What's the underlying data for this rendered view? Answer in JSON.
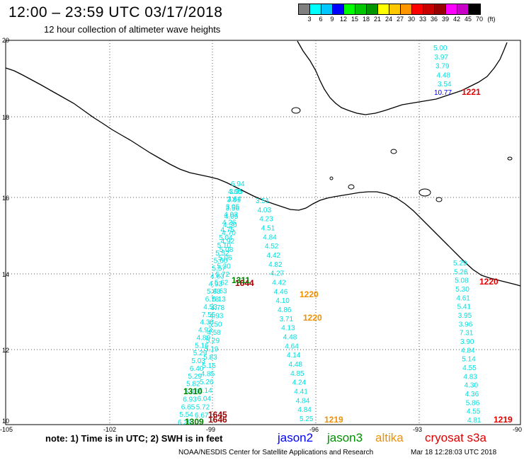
{
  "header": {
    "title": "12:00 – 23:59 UTC 03/17/2018",
    "subtitle": "12 hour collection of altimeter wave heights"
  },
  "scale": {
    "swatches": [
      "#7f7f7f",
      "#00ffff",
      "#00c8ff",
      "#0000ff",
      "#00ff00",
      "#00c800",
      "#009600",
      "#ffff00",
      "#ffc800",
      "#ff9600",
      "#ff0000",
      "#c80000",
      "#960000",
      "#ff00ff",
      "#c800c8",
      "#000000"
    ],
    "labels": [
      "3",
      "6",
      "9",
      "12",
      "15",
      "18",
      "21",
      "24",
      "27",
      "30",
      "33",
      "36",
      "39",
      "42",
      "45",
      "70"
    ],
    "unit": "(ft)"
  },
  "axes": {
    "lat_labels": [
      "20",
      "18",
      "16",
      "14",
      "12",
      "10"
    ],
    "lon_labels": [
      "-105",
      "-102",
      "-99",
      "-96",
      "-93",
      "-90"
    ]
  },
  "tracks": {
    "track_a": {
      "color": "#00e0e0",
      "values": [
        "6.94",
        "3.95",
        "3.64",
        "3.05",
        "4.03",
        "4.26",
        "4.75",
        "5.04",
        "5.10",
        "5.52",
        "5.60",
        "5.57",
        "4.63",
        "4.93",
        "5.68",
        "6.78",
        "4.53",
        "7.55",
        "4.38",
        "4.93",
        "4.89",
        "5.16",
        "5.29",
        "5.03",
        "6.40",
        "5.29",
        "5.82",
        "5.86",
        "6.93",
        "6.65",
        "5.54",
        "6.39"
      ]
    },
    "track_b": {
      "color": "#00e0e0",
      "values": [
        "4.05",
        "3.81",
        "3.56",
        "4.05",
        "4.30",
        "4.70",
        "4.92",
        "5.08",
        "5.06",
        "5.30",
        "5.72",
        "5.62",
        "4.63",
        "5.13",
        "4.78",
        "4.93",
        "5.50",
        "4.58",
        "5.29",
        "5.19",
        "5.83",
        "5.15",
        "4.85",
        "5.26",
        "6.14",
        "6.04",
        "5.72",
        "6.67"
      ]
    },
    "track_c": {
      "color": "#00e0e0",
      "values": [
        "3.51",
        "4.03",
        "4.23",
        "4.51",
        "4.84",
        "4.52",
        "4.42",
        "4.82",
        "4.27",
        "4.42",
        "4.46",
        "4.10",
        "4.86",
        "3.71",
        "4.13",
        "4.48",
        "4.64",
        "4.14",
        "4.48",
        "4.85",
        "4.24",
        "4.41",
        "4.84",
        "4.84",
        "5.25"
      ]
    },
    "track_d": {
      "color": "#00e0e0",
      "values": [
        "5.29",
        "5.26",
        "5.08",
        "5.30",
        "4.61",
        "5.41",
        "3.95",
        "3.96",
        "7.31",
        "3.90",
        "4.84",
        "5.14",
        "4.55",
        "4.83",
        "4.30",
        "4.36",
        "5.86",
        "4.55",
        "4.81"
      ]
    },
    "track_e": {
      "color": "#00e0e0",
      "values": [
        "5.00",
        "3.97",
        "3.79",
        "4.48",
        "3.54"
      ]
    },
    "track_e_extra": {
      "value": "10.77",
      "color": "#0000ff"
    }
  },
  "time_labels": [
    {
      "text": "1221",
      "color": "#e00000"
    },
    {
      "text": "1220",
      "color": "#e00000"
    },
    {
      "text": "1219",
      "color": "#e00000"
    },
    {
      "text": "1220",
      "color": "#f09000"
    },
    {
      "text": "1220",
      "color": "#f09000"
    },
    {
      "text": "1219",
      "color": "#f09000"
    },
    {
      "text": "1644",
      "color": "#a00000"
    },
    {
      "text": "1311",
      "color": "#008000"
    },
    {
      "text": "1310",
      "color": "#008000"
    },
    {
      "text": "1309",
      "color": "#008000"
    },
    {
      "text": "1645",
      "color": "#a00000"
    },
    {
      "text": "1646",
      "color": "#a00000"
    }
  ],
  "footer": {
    "note": "note: 1) Time is in UTC; 2) SWH is in feet",
    "satellites": [
      {
        "name": "jason2",
        "color": "#0000ff"
      },
      {
        "name": "jason3",
        "color": "#009000"
      },
      {
        "name": "altika",
        "color": "#f09000"
      },
      {
        "name": "cryosat s3a",
        "color": "#e00000"
      }
    ],
    "credit": "NOAA/NESDIS Center for Satellite Applications and Research",
    "date": "Mar 18 12:28:03 UTC 2018"
  }
}
